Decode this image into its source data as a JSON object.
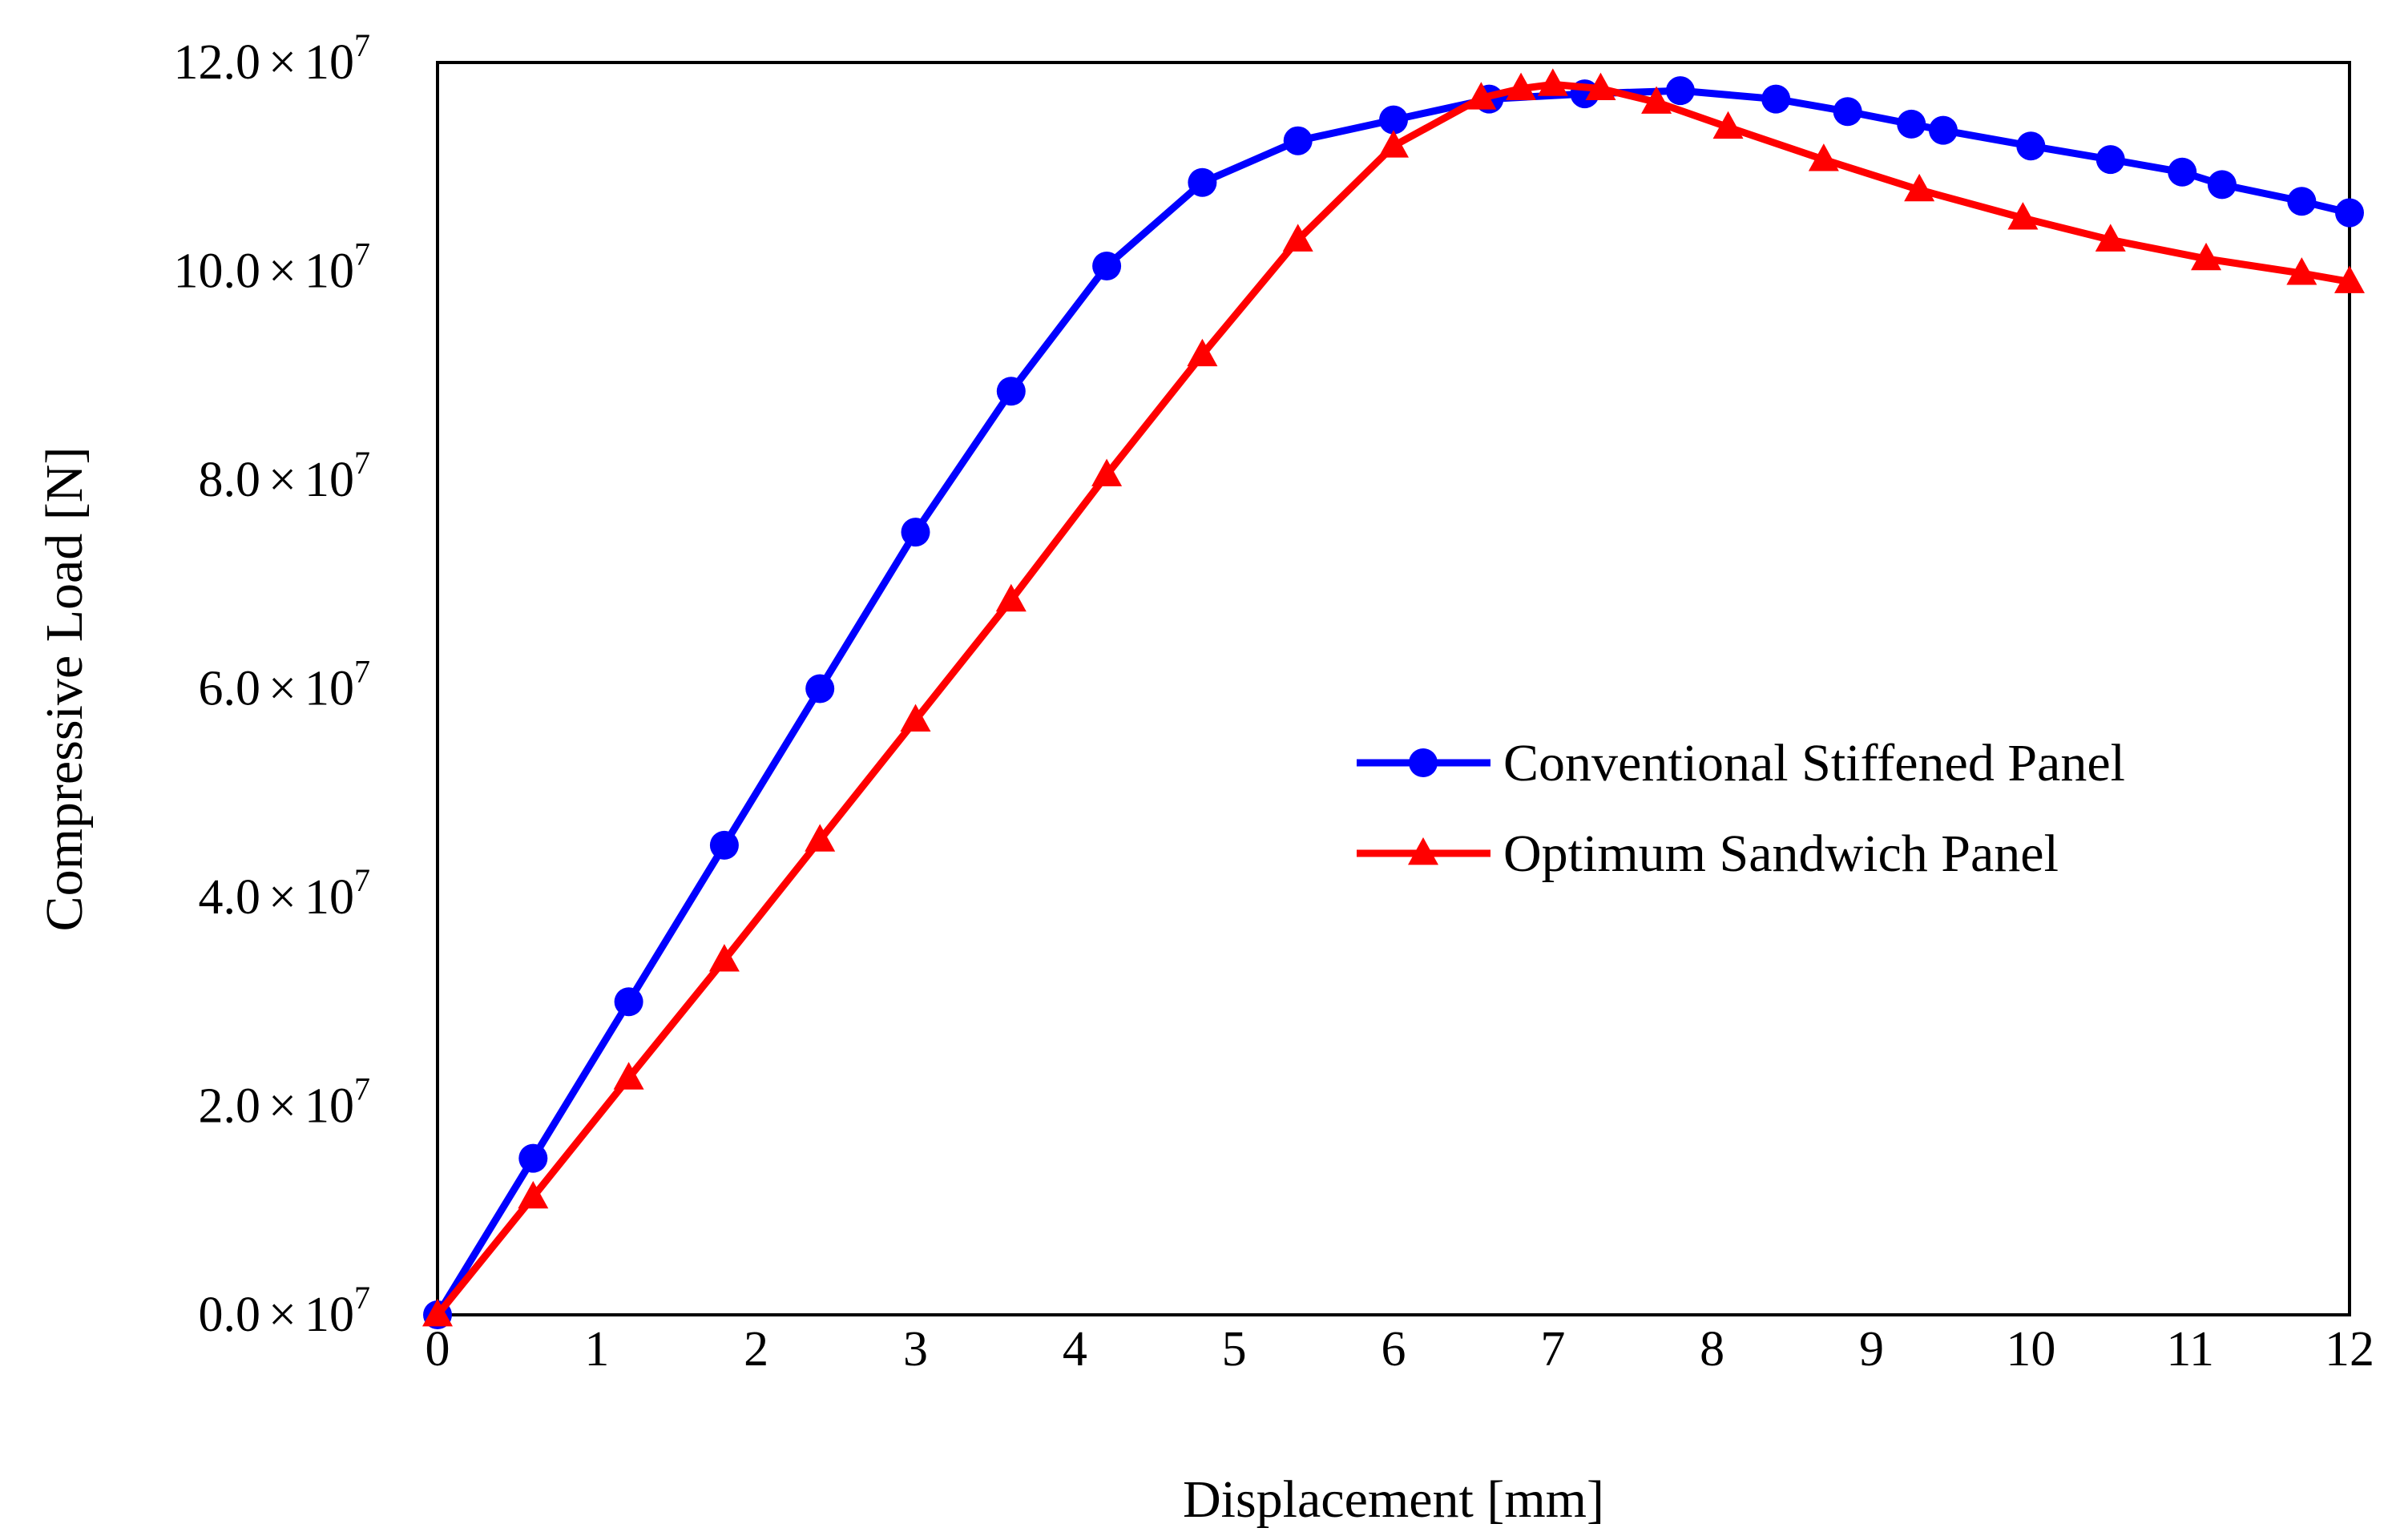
{
  "chart_data": {
    "type": "line",
    "xlabel": "Displacement [mm]",
    "ylabel": "Compressive Load [N]",
    "xlim": [
      0,
      12
    ],
    "ylim": [
      0,
      120000000
    ],
    "x_ticks": [
      "0",
      "1",
      "2",
      "3",
      "4",
      "5",
      "6",
      "7",
      "8",
      "9",
      "10",
      "11",
      "12"
    ],
    "y_ticks": [
      {
        "value": 0,
        "mantissa": "0.0",
        "times": "×",
        "base": "10",
        "exponent": "7"
      },
      {
        "value": 20000000,
        "mantissa": "2.0",
        "times": "×",
        "base": "10",
        "exponent": "7"
      },
      {
        "value": 40000000,
        "mantissa": "4.0",
        "times": "×",
        "base": "10",
        "exponent": "7"
      },
      {
        "value": 60000000,
        "mantissa": "6.0",
        "times": "×",
        "base": "10",
        "exponent": "7"
      },
      {
        "value": 80000000,
        "mantissa": "8.0",
        "times": "×",
        "base": "10",
        "exponent": "7"
      },
      {
        "value": 100000000,
        "mantissa": "10.0",
        "times": "×",
        "base": "10",
        "exponent": "7"
      },
      {
        "value": 120000000,
        "mantissa": "12.0",
        "times": "×",
        "base": "10",
        "exponent": "7"
      }
    ],
    "grid": false,
    "legend_position": "center-right",
    "series": [
      {
        "name": "Conventional Stiffened Panel",
        "color": "#0000ff",
        "marker": "circle",
        "x": [
          0,
          0.6,
          1.2,
          1.8,
          2.4,
          3.0,
          3.6,
          4.2,
          4.8,
          5.4,
          6.0,
          6.6,
          7.2,
          7.8,
          8.4,
          8.85,
          9.25,
          9.45,
          10.0,
          10.5,
          10.95,
          11.2,
          11.7,
          12.0
        ],
        "y": [
          0,
          15000000,
          30000000,
          45000000,
          60000000,
          75000000,
          88500000,
          100500000,
          108500000,
          112500000,
          114500000,
          116500000,
          117000000,
          117300000,
          116500000,
          115300000,
          114100000,
          113500000,
          112000000,
          110700000,
          109500000,
          108300000,
          106700000,
          105600000
        ]
      },
      {
        "name": "Optimum Sandwich Panel",
        "color": "#ff0000",
        "marker": "triangle",
        "x": [
          0,
          0.6,
          1.2,
          1.8,
          2.4,
          3.0,
          3.6,
          4.2,
          4.8,
          5.4,
          6.0,
          6.55,
          6.8,
          7.0,
          7.3,
          7.65,
          8.1,
          8.7,
          9.3,
          9.95,
          10.5,
          11.1,
          11.7,
          12.0
        ],
        "y": [
          0,
          11300000,
          22700000,
          34000000,
          45500000,
          57000000,
          68500000,
          80500000,
          92000000,
          103000000,
          112000000,
          116600000,
          117500000,
          117900000,
          117500000,
          116200000,
          113800000,
          110700000,
          107800000,
          105100000,
          103000000,
          101200000,
          99800000,
          99000000
        ]
      }
    ]
  }
}
